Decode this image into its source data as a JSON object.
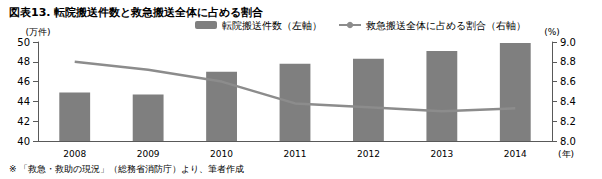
{
  "chart_data": {
    "type": "bar",
    "title": "図表13. 転院搬送件数と救急搬送全体に占める割合",
    "note": "※ 「救急・救助の現況」（総務省消防庁）より、筆者作成",
    "x_label": "(年)",
    "y_label": "(万件)",
    "y2_label": "(%)",
    "categories": [
      "2008",
      "2009",
      "2010",
      "2011",
      "2012",
      "2013",
      "2014"
    ],
    "series": [
      {
        "name": "転院搬送件数（左軸）",
        "type": "bar",
        "color": "#7f7f7f",
        "values": [
          44.9,
          44.7,
          47.0,
          47.8,
          48.3,
          49.1,
          49.9
        ]
      },
      {
        "name": "救急搬送全体に占める割合（右軸）",
        "type": "line",
        "axis": "y2",
        "color": "#8c8c8c",
        "marker": "none",
        "values": [
          8.8,
          8.72,
          8.6,
          8.38,
          8.34,
          8.3,
          8.33
        ]
      }
    ],
    "ylim": [
      40,
      50
    ],
    "yticks": [
      40,
      42,
      44,
      46,
      48,
      50
    ],
    "y2lim": [
      8,
      9
    ],
    "y2ticks": [
      {
        "value": 8,
        "label": "8.0"
      },
      8.2,
      8.4,
      8.6,
      8.8,
      {
        "value": 9,
        "label": "9.0"
      }
    ],
    "grid": false,
    "legend": "top"
  }
}
